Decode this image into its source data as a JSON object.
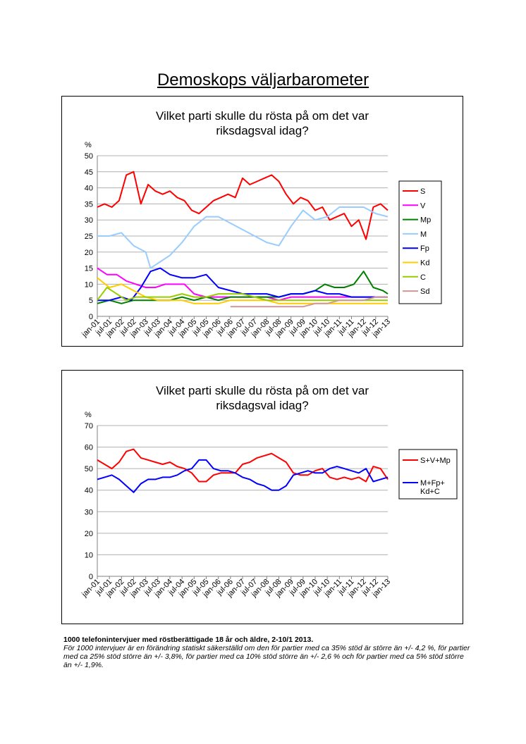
{
  "page": {
    "title": "Demoskops väljarbarometer",
    "footnote_bold": "1000 telefonintervjuer med röstberättigade 18 år och äldre, 2-10/1 2013.",
    "footnote_italic": "För 1000 intervjuer är en förändring statiskt säkerställd om den för partier med ca 35% stöd är större än +/- 4,2 %, för partier med ca 25% stöd större än +/- 3,8%, för partier med ca 10% stöd större än +/- 2,6 % och för partier med ca 5% stöd större än +/- 1,9%."
  },
  "chart_data": [
    {
      "type": "line",
      "title_lines": [
        "Vilket parti skulle du rösta på om det var",
        "riksdagsval idag?"
      ],
      "ylabel": "%",
      "ylim": [
        0,
        50
      ],
      "yticks": [
        0,
        5,
        10,
        15,
        20,
        25,
        30,
        35,
        40,
        45,
        50
      ],
      "grid": true,
      "legend": "right",
      "x_tick_labels": [
        "jan-01",
        "jul-01",
        "jan-02",
        "jul-02",
        "jan-03",
        "jul-03",
        "jan-04",
        "jul-04",
        "jan-05",
        "jul-05",
        "jan-06",
        "jul-06",
        "jan-07",
        "jul-07",
        "jan-08",
        "jul-08",
        "jan-09",
        "jul-09",
        "jan-10",
        "jul-10",
        "jan-11",
        "jul-11",
        "jan-12",
        "jul-12",
        "jan-13"
      ],
      "series": [
        {
          "name": "S",
          "color": "#ff0000",
          "x": [
            2001.0,
            2001.3,
            2001.6,
            2001.9,
            2002.2,
            2002.5,
            2002.8,
            2003.1,
            2003.4,
            2003.7,
            2004.0,
            2004.3,
            2004.6,
            2004.9,
            2005.2,
            2005.5,
            2005.8,
            2006.1,
            2006.4,
            2006.7,
            2007.0,
            2007.3,
            2007.6,
            2007.9,
            2008.2,
            2008.5,
            2008.8,
            2009.1,
            2009.4,
            2009.7,
            2010.0,
            2010.3,
            2010.6,
            2010.9,
            2011.2,
            2011.5,
            2011.8,
            2012.1,
            2012.4,
            2012.7,
            2013.0
          ],
          "values": [
            34,
            35,
            34,
            36,
            44,
            45,
            35,
            41,
            39,
            38,
            39,
            37,
            36,
            33,
            32,
            34,
            36,
            37,
            38,
            37,
            43,
            41,
            42,
            43,
            44,
            42,
            38,
            35,
            37,
            36,
            33,
            34,
            30,
            31,
            32,
            28,
            30,
            24,
            34,
            35,
            33
          ]
        },
        {
          "name": "V",
          "color": "#ff00ff",
          "x": [
            2001.0,
            2001.4,
            2001.8,
            2002.2,
            2002.6,
            2003.0,
            2003.4,
            2003.8,
            2004.2,
            2004.6,
            2005.0,
            2005.5,
            2006.0,
            2006.5,
            2007.0,
            2007.5,
            2008.0,
            2008.5,
            2009.0,
            2009.5,
            2010.0,
            2010.5,
            2011.0,
            2011.5,
            2012.0,
            2012.5,
            2013.0
          ],
          "values": [
            15,
            13,
            13,
            11,
            10,
            9,
            9,
            10,
            10,
            10,
            7,
            6,
            6,
            6,
            6,
            6,
            6,
            5,
            6,
            6,
            6,
            6,
            6,
            6,
            6,
            6,
            6
          ]
        },
        {
          "name": "Mp",
          "color": "#008000",
          "x": [
            2001.0,
            2001.5,
            2002.0,
            2002.5,
            2003.0,
            2003.5,
            2004.0,
            2004.5,
            2005.0,
            2005.5,
            2006.0,
            2006.5,
            2007.0,
            2007.5,
            2008.0,
            2008.5,
            2009.0,
            2009.5,
            2010.0,
            2010.4,
            2010.8,
            2011.2,
            2011.6,
            2012.0,
            2012.4,
            2012.8,
            2013.0
          ],
          "values": [
            4,
            5,
            4,
            5,
            5,
            5,
            5,
            6,
            5,
            6,
            5,
            6,
            6,
            6,
            6,
            6,
            7,
            7,
            8,
            10,
            9,
            9,
            10,
            14,
            9,
            8,
            7
          ]
        },
        {
          "name": "M",
          "color": "#99ccff",
          "x": [
            2001.0,
            2001.5,
            2002.0,
            2002.5,
            2003.0,
            2003.2,
            2003.6,
            2004.0,
            2004.5,
            2005.0,
            2005.5,
            2006.0,
            2006.5,
            2007.0,
            2007.5,
            2008.0,
            2008.5,
            2009.0,
            2009.5,
            2010.0,
            2010.5,
            2011.0,
            2011.5,
            2012.0,
            2012.5,
            2013.0
          ],
          "values": [
            25,
            25,
            26,
            22,
            20,
            15,
            17,
            19,
            23,
            28,
            31,
            31,
            29,
            27,
            25,
            23,
            22,
            28,
            33,
            30,
            31,
            34,
            34,
            34,
            32,
            31
          ]
        },
        {
          "name": "Fp",
          "color": "#0000ff",
          "x": [
            2001.0,
            2001.5,
            2002.0,
            2002.4,
            2002.8,
            2003.2,
            2003.6,
            2004.0,
            2004.5,
            2005.0,
            2005.5,
            2006.0,
            2006.5,
            2007.0,
            2007.5,
            2008.0,
            2008.5,
            2009.0,
            2009.5,
            2010.0,
            2010.5,
            2011.0,
            2011.5,
            2012.0,
            2012.5,
            2013.0
          ],
          "values": [
            5,
            5,
            6,
            5,
            9,
            14,
            15,
            13,
            12,
            12,
            13,
            9,
            8,
            7,
            7,
            7,
            6,
            7,
            7,
            8,
            7,
            7,
            6,
            6,
            6,
            6
          ]
        },
        {
          "name": "Kd",
          "color": "#ffcc00",
          "x": [
            2001.0,
            2001.5,
            2002.0,
            2002.5,
            2003.0,
            2003.5,
            2004.0,
            2004.5,
            2005.0,
            2005.5,
            2006.0,
            2006.5,
            2007.0,
            2007.5,
            2008.0,
            2008.5,
            2009.0,
            2009.5,
            2010.0,
            2010.5,
            2011.0,
            2011.5,
            2012.0,
            2012.5,
            2013.0
          ],
          "values": [
            12,
            9,
            10,
            8,
            6,
            5,
            5,
            5,
            4,
            4,
            4,
            5,
            5,
            5,
            5,
            4,
            4,
            4,
            4,
            4,
            4,
            4,
            4,
            4,
            4
          ]
        },
        {
          "name": "C",
          "color": "#99cc00",
          "x": [
            2001.0,
            2001.4,
            2001.8,
            2002.2,
            2002.6,
            2003.0,
            2003.5,
            2004.0,
            2004.5,
            2005.0,
            2005.5,
            2006.0,
            2006.5,
            2007.0,
            2007.5,
            2008.0,
            2008.5,
            2009.0,
            2009.5,
            2010.0,
            2010.5,
            2011.0,
            2011.5,
            2012.0,
            2012.5,
            2013.0
          ],
          "values": [
            5,
            9,
            7,
            5,
            6,
            6,
            6,
            6,
            7,
            6,
            6,
            7,
            7,
            7,
            6,
            5,
            5,
            5,
            5,
            5,
            5,
            5,
            5,
            5,
            5,
            5
          ]
        },
        {
          "name": "Sd",
          "color": "#cc9999",
          "x": [
            2006.5,
            2007.0,
            2007.5,
            2008.0,
            2008.5,
            2009.0,
            2009.5,
            2010.0,
            2010.5,
            2011.0,
            2011.5,
            2012.0,
            2012.5,
            2013.0
          ],
          "values": [
            3,
            3,
            3,
            3,
            3,
            3,
            3,
            4,
            4,
            5,
            5,
            5,
            6,
            6
          ]
        }
      ]
    },
    {
      "type": "line",
      "title_lines": [
        "Vilket parti skulle du rösta på om det var",
        "riksdagsval idag?"
      ],
      "ylabel": "%",
      "ylim": [
        0,
        70
      ],
      "yticks": [
        0,
        10,
        20,
        30,
        40,
        50,
        60,
        70
      ],
      "grid": true,
      "legend": "right",
      "x_tick_labels": [
        "jan-01",
        "jul-01",
        "jan-02",
        "jul-02",
        "jan-03",
        "jul-03",
        "jan-04",
        "jul-04",
        "jan-05",
        "jul-05",
        "jan-06",
        "jul-06",
        "jan-07",
        "jul-07",
        "jan-08",
        "jul-08",
        "jan-09",
        "jul-09",
        "jan-10",
        "jul-10",
        "jan-11",
        "jul-11",
        "jan-12",
        "jul-12",
        "jan-13"
      ],
      "series": [
        {
          "name": "S+V+Mp",
          "color": "#ff0000",
          "x": [
            2001.0,
            2001.3,
            2001.6,
            2001.9,
            2002.2,
            2002.5,
            2002.8,
            2003.1,
            2003.4,
            2003.7,
            2004.0,
            2004.3,
            2004.6,
            2004.9,
            2005.2,
            2005.5,
            2005.8,
            2006.1,
            2006.4,
            2006.7,
            2007.0,
            2007.3,
            2007.6,
            2007.9,
            2008.2,
            2008.5,
            2008.8,
            2009.1,
            2009.4,
            2009.7,
            2010.0,
            2010.3,
            2010.6,
            2010.9,
            2011.2,
            2011.5,
            2011.8,
            2012.1,
            2012.4,
            2012.7,
            2013.0
          ],
          "values": [
            54,
            52,
            50,
            53,
            58,
            59,
            55,
            54,
            53,
            52,
            53,
            51,
            50,
            48,
            44,
            44,
            47,
            48,
            48,
            48,
            52,
            53,
            55,
            56,
            57,
            55,
            53,
            48,
            47,
            47,
            49,
            50,
            46,
            45,
            46,
            45,
            46,
            44,
            51,
            50,
            45
          ]
        },
        {
          "name": "M+Fp+ Kd+C",
          "color": "#0000ff",
          "x": [
            2001.0,
            2001.3,
            2001.6,
            2001.9,
            2002.2,
            2002.5,
            2002.8,
            2003.1,
            2003.4,
            2003.7,
            2004.0,
            2004.3,
            2004.6,
            2004.9,
            2005.2,
            2005.5,
            2005.8,
            2006.1,
            2006.4,
            2006.7,
            2007.0,
            2007.3,
            2007.6,
            2007.9,
            2008.2,
            2008.5,
            2008.8,
            2009.1,
            2009.4,
            2009.7,
            2010.0,
            2010.3,
            2010.6,
            2010.9,
            2011.2,
            2011.5,
            2011.8,
            2012.1,
            2012.4,
            2012.7,
            2013.0
          ],
          "values": [
            45,
            46,
            47,
            45,
            42,
            39,
            43,
            45,
            45,
            46,
            46,
            47,
            49,
            50,
            54,
            54,
            50,
            49,
            49,
            48,
            46,
            45,
            43,
            42,
            40,
            40,
            42,
            47,
            48,
            49,
            48,
            48,
            50,
            51,
            50,
            49,
            48,
            50,
            44,
            45,
            46
          ]
        }
      ]
    }
  ]
}
